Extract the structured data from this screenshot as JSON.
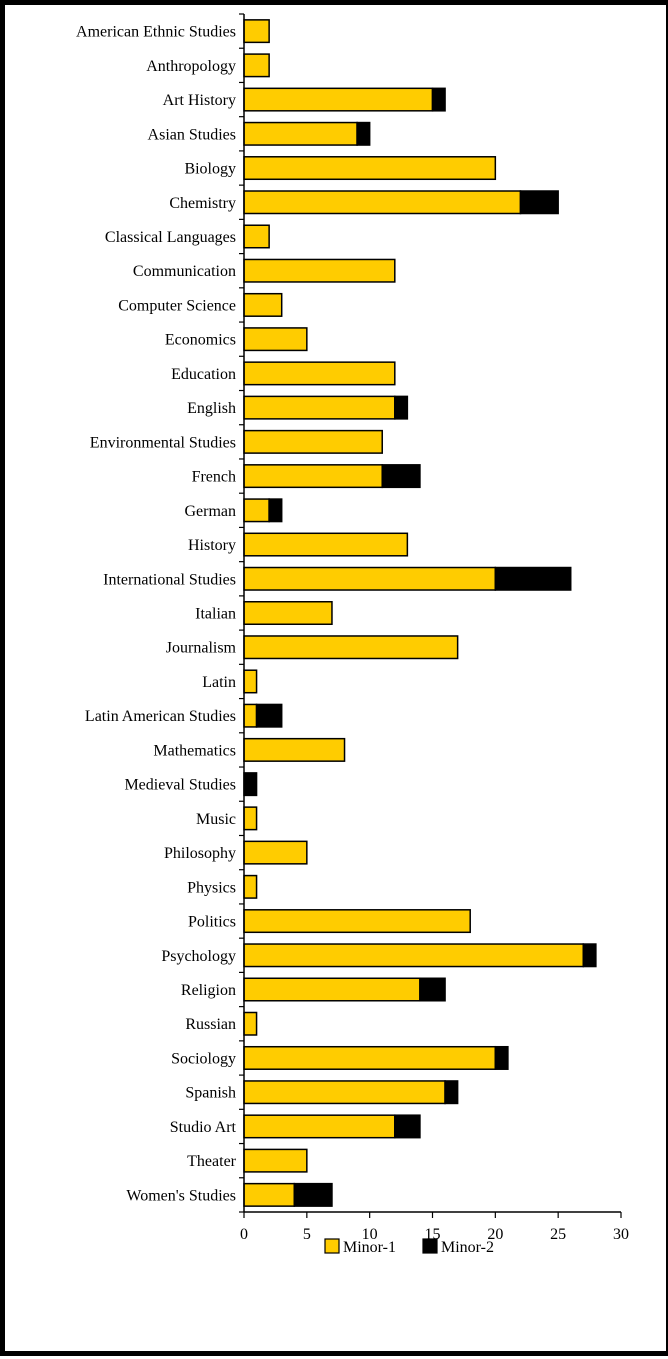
{
  "chart_data": {
    "type": "bar",
    "orientation": "horizontal",
    "stacked": true,
    "title": "",
    "xlabel": "",
    "ylabel": "",
    "xlim": [
      0,
      30
    ],
    "xticks": [
      0,
      5,
      10,
      15,
      20,
      25,
      30
    ],
    "grid": false,
    "legend_position": "bottom",
    "categories": [
      "American Ethnic Studies",
      "Anthropology",
      "Art History",
      "Asian Studies",
      "Biology",
      "Chemistry",
      "Classical Languages",
      "Communication",
      "Computer Science",
      "Economics",
      "Education",
      "English",
      "Environmental Studies",
      "French",
      "German",
      "History",
      "International Studies",
      "Italian",
      "Journalism",
      "Latin",
      "Latin American Studies",
      "Mathematics",
      "Medieval Studies",
      "Music",
      "Philosophy",
      "Physics",
      "Politics",
      "Psychology",
      "Religion",
      "Russian",
      "Sociology",
      "Spanish",
      "Studio Art",
      "Theater",
      "Women's Studies"
    ],
    "series": [
      {
        "name": "Minor-1",
        "color": "#ffcc00",
        "values": [
          2,
          2,
          15,
          9,
          20,
          22,
          2,
          12,
          3,
          5,
          12,
          12,
          11,
          11,
          2,
          13,
          20,
          7,
          17,
          1,
          1,
          8,
          0,
          1,
          5,
          1,
          18,
          27,
          14,
          1,
          20,
          16,
          12,
          5,
          4
        ]
      },
      {
        "name": "Minor-2",
        "color": "#000000",
        "values": [
          0,
          0,
          1,
          1,
          0,
          3,
          0,
          0,
          0,
          0,
          0,
          1,
          0,
          3,
          1,
          0,
          6,
          0,
          0,
          0,
          2,
          0,
          1,
          0,
          0,
          0,
          0,
          1,
          2,
          0,
          1,
          1,
          2,
          0,
          3
        ]
      }
    ]
  }
}
